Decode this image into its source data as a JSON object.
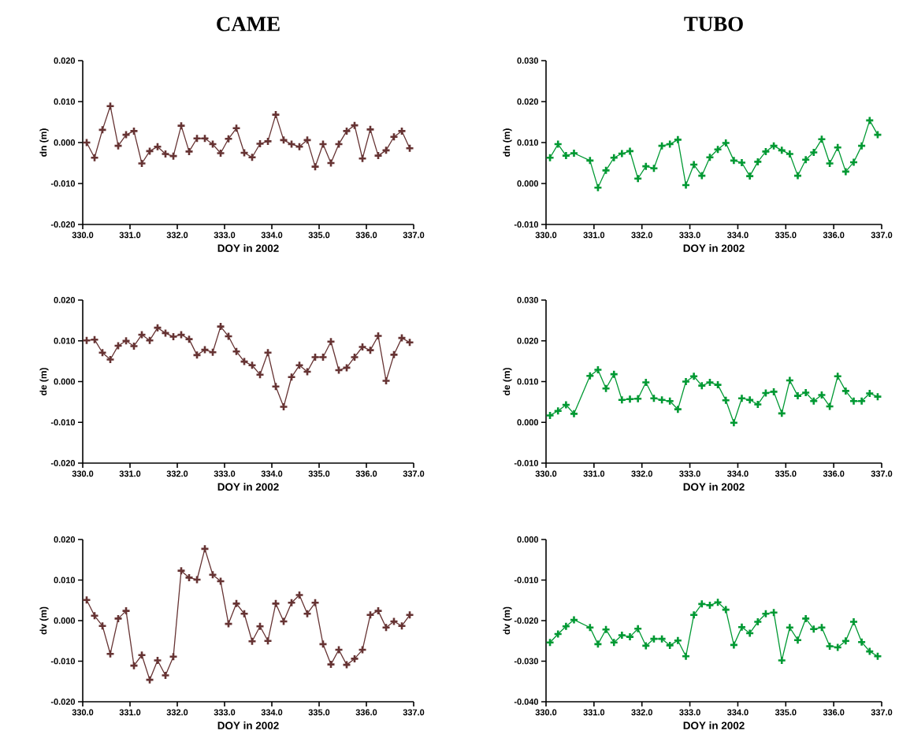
{
  "chart_data": [
    {
      "type": "line",
      "title": "CAME",
      "xlabel": "DOY in 2002",
      "ylabel": "dn (m)",
      "marker": "cross",
      "line_style": "solid",
      "xlim": [
        330,
        337
      ],
      "ylim": [
        -0.02,
        0.02
      ],
      "xticks": [
        {
          "value": 330,
          "label": "330.0"
        },
        {
          "value": 331,
          "label": "331.0"
        },
        {
          "value": 332,
          "label": "332.0"
        },
        {
          "value": 333,
          "label": "333.0"
        },
        {
          "value": 334,
          "label": "334.0"
        },
        {
          "value": 335,
          "label": "335.0"
        },
        {
          "value": 336,
          "label": "336.0"
        },
        {
          "value": 337,
          "label": "337.0"
        }
      ],
      "yticks": [
        {
          "value": -0.02,
          "label": "-0.020"
        },
        {
          "value": -0.01,
          "label": "-0.010"
        },
        {
          "value": 0,
          "label": "0.000"
        },
        {
          "value": 0.01,
          "label": "0.010"
        },
        {
          "value": 0.02,
          "label": "0.020"
        }
      ],
      "series": [
        {
          "color": "#663333",
          "x": [
            330.083,
            330.25,
            330.417,
            330.583,
            330.75,
            330.917,
            331.083,
            331.25,
            331.417,
            331.583,
            331.75,
            331.917,
            332.083,
            332.25,
            332.417,
            332.583,
            332.75,
            332.917,
            333.083,
            333.25,
            333.417,
            333.583,
            333.75,
            333.917,
            334.083,
            334.25,
            334.417,
            334.583,
            334.75,
            334.917,
            335.083,
            335.25,
            335.417,
            335.583,
            335.75,
            335.917,
            336.083,
            336.25,
            336.417,
            336.583,
            336.75,
            336.917
          ],
          "values": [
            0.0,
            -0.0037,
            0.0031,
            0.0089,
            -0.0008,
            0.0019,
            0.0028,
            -0.0051,
            -0.0021,
            -0.001,
            -0.0028,
            -0.0033,
            0.0041,
            -0.0022,
            0.001,
            0.001,
            -0.0004,
            -0.0026,
            0.0009,
            0.0035,
            -0.0025,
            -0.0036,
            -0.0003,
            0.0003,
            0.0068,
            0.0006,
            -0.0004,
            -0.001,
            0.0006,
            -0.0059,
            -0.0004,
            -0.005,
            -0.0004,
            0.0028,
            0.0042,
            -0.0039,
            0.0032,
            -0.0032,
            -0.0019,
            0.0014,
            0.0028,
            -0.0014
          ]
        }
      ]
    },
    {
      "type": "line",
      "title": "TUBO",
      "xlabel": "DOY in 2002",
      "ylabel": "dn (m)",
      "marker": "cross",
      "line_style": "solid",
      "xlim": [
        330,
        337
      ],
      "ylim": [
        -0.01,
        0.03
      ],
      "xticks": [
        {
          "value": 330,
          "label": "330.0"
        },
        {
          "value": 331,
          "label": "331.0"
        },
        {
          "value": 332,
          "label": "332.0"
        },
        {
          "value": 333,
          "label": "333.0"
        },
        {
          "value": 334,
          "label": "334.0"
        },
        {
          "value": 335,
          "label": "335.0"
        },
        {
          "value": 336,
          "label": "336.0"
        },
        {
          "value": 337,
          "label": "337.0"
        }
      ],
      "yticks": [
        {
          "value": -0.01,
          "label": "-0.010"
        },
        {
          "value": 0,
          "label": "0.000"
        },
        {
          "value": 0.01,
          "label": "0.010"
        },
        {
          "value": 0.02,
          "label": "0.020"
        },
        {
          "value": 0.03,
          "label": "0.030"
        }
      ],
      "series": [
        {
          "color": "#009933",
          "x": [
            330.083,
            330.25,
            330.417,
            330.583,
            330.917,
            331.083,
            331.25,
            331.417,
            331.583,
            331.75,
            331.917,
            332.083,
            332.25,
            332.417,
            332.583,
            332.75,
            332.917,
            333.083,
            333.25,
            333.417,
            333.583,
            333.75,
            333.917,
            334.083,
            334.25,
            334.417,
            334.583,
            334.75,
            334.917,
            335.083,
            335.25,
            335.417,
            335.583,
            335.75,
            335.917,
            336.083,
            336.25,
            336.417,
            336.583,
            336.75,
            336.917
          ],
          "values": [
            0.0063,
            0.0096,
            0.0068,
            0.0074,
            0.0056,
            -0.001,
            0.0032,
            0.0063,
            0.0073,
            0.0079,
            0.0012,
            0.0042,
            0.0037,
            0.0092,
            0.0096,
            0.0107,
            -0.0004,
            0.0046,
            0.0019,
            0.0064,
            0.0083,
            0.0099,
            0.0056,
            0.0051,
            0.0018,
            0.0053,
            0.0078,
            0.0092,
            0.0081,
            0.0072,
            0.0019,
            0.0058,
            0.0076,
            0.0108,
            0.0049,
            0.0088,
            0.0029,
            0.0052,
            0.0092,
            0.0154,
            0.0119
          ]
        }
      ]
    },
    {
      "type": "line",
      "xlabel": "DOY in 2002",
      "ylabel": "de (m)",
      "marker": "cross",
      "line_style": "solid",
      "xlim": [
        330,
        337
      ],
      "ylim": [
        -0.02,
        0.02
      ],
      "xticks": [
        {
          "value": 330,
          "label": "330.0"
        },
        {
          "value": 331,
          "label": "331.0"
        },
        {
          "value": 332,
          "label": "332.0"
        },
        {
          "value": 333,
          "label": "333.0"
        },
        {
          "value": 334,
          "label": "334.0"
        },
        {
          "value": 335,
          "label": "335.0"
        },
        {
          "value": 336,
          "label": "336.0"
        },
        {
          "value": 337,
          "label": "337.0"
        }
      ],
      "yticks": [
        {
          "value": -0.02,
          "label": "-0.020"
        },
        {
          "value": -0.01,
          "label": "-0.010"
        },
        {
          "value": 0,
          "label": "0.000"
        },
        {
          "value": 0.01,
          "label": "0.010"
        },
        {
          "value": 0.02,
          "label": "0.020"
        }
      ],
      "series": [
        {
          "color": "#663333",
          "x": [
            330.083,
            330.25,
            330.417,
            330.583,
            330.75,
            330.917,
            331.083,
            331.25,
            331.417,
            331.583,
            331.75,
            331.917,
            332.083,
            332.25,
            332.417,
            332.583,
            332.75,
            332.917,
            333.083,
            333.25,
            333.417,
            333.583,
            333.75,
            333.917,
            334.083,
            334.25,
            334.417,
            334.583,
            334.75,
            334.917,
            335.083,
            335.25,
            335.417,
            335.583,
            335.75,
            335.917,
            336.083,
            336.25,
            336.417,
            336.583,
            336.75,
            336.917
          ],
          "values": [
            0.0101,
            0.0103,
            0.0071,
            0.0054,
            0.0088,
            0.01,
            0.0087,
            0.0115,
            0.0101,
            0.0132,
            0.0119,
            0.011,
            0.0115,
            0.0104,
            0.0065,
            0.0078,
            0.0072,
            0.0135,
            0.0111,
            0.0074,
            0.0049,
            0.004,
            0.0017,
            0.0071,
            -0.0012,
            -0.0062,
            0.0011,
            0.004,
            0.0024,
            0.006,
            0.006,
            0.0098,
            0.0028,
            0.0034,
            0.006,
            0.0085,
            0.0077,
            0.0112,
            0.0002,
            0.0066,
            0.0107,
            0.0096
          ]
        }
      ]
    },
    {
      "type": "line",
      "xlabel": "DOY in 2002",
      "ylabel": "de (m)",
      "marker": "cross",
      "line_style": "solid",
      "xlim": [
        330,
        337
      ],
      "ylim": [
        -0.01,
        0.03
      ],
      "xticks": [
        {
          "value": 330,
          "label": "330.0"
        },
        {
          "value": 331,
          "label": "331.0"
        },
        {
          "value": 332,
          "label": "332.0"
        },
        {
          "value": 333,
          "label": "333.0"
        },
        {
          "value": 334,
          "label": "334.0"
        },
        {
          "value": 335,
          "label": "335.0"
        },
        {
          "value": 336,
          "label": "336.0"
        },
        {
          "value": 337,
          "label": "337.0"
        }
      ],
      "yticks": [
        {
          "value": -0.01,
          "label": "-0.010"
        },
        {
          "value": 0,
          "label": "0.000"
        },
        {
          "value": 0.01,
          "label": "0.010"
        },
        {
          "value": 0.02,
          "label": "0.020"
        },
        {
          "value": 0.03,
          "label": "0.030"
        }
      ],
      "series": [
        {
          "color": "#009933",
          "x": [
            330.083,
            330.25,
            330.417,
            330.583,
            330.917,
            331.083,
            331.25,
            331.417,
            331.583,
            331.75,
            331.917,
            332.083,
            332.25,
            332.417,
            332.583,
            332.75,
            332.917,
            333.083,
            333.25,
            333.417,
            333.583,
            333.75,
            333.917,
            334.083,
            334.25,
            334.417,
            334.583,
            334.75,
            334.917,
            335.083,
            335.25,
            335.417,
            335.583,
            335.75,
            335.917,
            336.083,
            336.25,
            336.417,
            336.583,
            336.75,
            336.917
          ],
          "values": [
            0.0017,
            0.0028,
            0.0043,
            0.0021,
            0.0114,
            0.0129,
            0.0083,
            0.0118,
            0.0055,
            0.0057,
            0.0058,
            0.0098,
            0.0059,
            0.0055,
            0.0052,
            0.0032,
            0.01,
            0.0113,
            0.009,
            0.0098,
            0.0092,
            0.0054,
            -0.0001,
            0.0059,
            0.0055,
            0.0044,
            0.0072,
            0.0075,
            0.0022,
            0.0103,
            0.0065,
            0.0073,
            0.0052,
            0.0067,
            0.0039,
            0.0113,
            0.0077,
            0.0052,
            0.0052,
            0.0071,
            0.0063
          ]
        }
      ]
    },
    {
      "type": "line",
      "xlabel": "DOY in 2002",
      "ylabel": "dv (m)",
      "marker": "cross",
      "line_style": "solid",
      "xlim": [
        330,
        337
      ],
      "ylim": [
        -0.02,
        0.02
      ],
      "xticks": [
        {
          "value": 330,
          "label": "330.0"
        },
        {
          "value": 331,
          "label": "331.0"
        },
        {
          "value": 332,
          "label": "332.0"
        },
        {
          "value": 333,
          "label": "333.0"
        },
        {
          "value": 334,
          "label": "334.0"
        },
        {
          "value": 335,
          "label": "335.0"
        },
        {
          "value": 336,
          "label": "336.0"
        },
        {
          "value": 337,
          "label": "337.0"
        }
      ],
      "yticks": [
        {
          "value": -0.02,
          "label": "-0.020"
        },
        {
          "value": -0.01,
          "label": "-0.010"
        },
        {
          "value": 0,
          "label": "0.000"
        },
        {
          "value": 0.01,
          "label": "0.010"
        },
        {
          "value": 0.02,
          "label": "0.020"
        }
      ],
      "series": [
        {
          "color": "#663333",
          "x": [
            330.083,
            330.25,
            330.417,
            330.583,
            330.75,
            330.917,
            331.083,
            331.25,
            331.417,
            331.583,
            331.75,
            331.917,
            332.083,
            332.25,
            332.417,
            332.583,
            332.75,
            332.917,
            333.083,
            333.25,
            333.417,
            333.583,
            333.75,
            333.917,
            334.083,
            334.25,
            334.417,
            334.583,
            334.75,
            334.917,
            335.083,
            335.25,
            335.417,
            335.583,
            335.75,
            335.917,
            336.083,
            336.25,
            336.417,
            336.583,
            336.75,
            336.917
          ],
          "values": [
            0.0051,
            0.0012,
            -0.0013,
            -0.0082,
            0.0005,
            0.0024,
            -0.0111,
            -0.0085,
            -0.0146,
            -0.0098,
            -0.0135,
            -0.0089,
            0.0123,
            0.0106,
            0.0101,
            0.0177,
            0.0113,
            0.0097,
            -0.0008,
            0.0042,
            0.0017,
            -0.0051,
            -0.0014,
            -0.005,
            0.0042,
            -0.0002,
            0.0044,
            0.0063,
            0.0017,
            0.0044,
            -0.0058,
            -0.0108,
            -0.0072,
            -0.0109,
            -0.0094,
            -0.0072,
            0.0014,
            0.0024,
            -0.0017,
            -0.0002,
            -0.0013,
            0.0014
          ]
        }
      ]
    },
    {
      "type": "line",
      "xlabel": "DOY in 2002",
      "ylabel": "dv (m)",
      "marker": "cross",
      "line_style": "solid",
      "xlim": [
        330,
        337
      ],
      "ylim": [
        -0.04,
        0.0
      ],
      "xticks": [
        {
          "value": 330,
          "label": "330.0"
        },
        {
          "value": 331,
          "label": "331.0"
        },
        {
          "value": 332,
          "label": "332.0"
        },
        {
          "value": 333,
          "label": "333.0"
        },
        {
          "value": 334,
          "label": "334.0"
        },
        {
          "value": 335,
          "label": "335.0"
        },
        {
          "value": 336,
          "label": "336.0"
        },
        {
          "value": 337,
          "label": "337.0"
        }
      ],
      "yticks": [
        {
          "value": -0.04,
          "label": "-0.040"
        },
        {
          "value": -0.03,
          "label": "-0.030"
        },
        {
          "value": -0.02,
          "label": "-0.020"
        },
        {
          "value": -0.01,
          "label": "-0.010"
        },
        {
          "value": 0,
          "label": "0.000"
        }
      ],
      "series": [
        {
          "color": "#009933",
          "x": [
            330.083,
            330.25,
            330.417,
            330.583,
            330.917,
            331.083,
            331.25,
            331.417,
            331.583,
            331.75,
            331.917,
            332.083,
            332.25,
            332.417,
            332.583,
            332.75,
            332.917,
            333.083,
            333.25,
            333.417,
            333.583,
            333.75,
            333.917,
            334.083,
            334.25,
            334.417,
            334.583,
            334.75,
            334.917,
            335.083,
            335.25,
            335.417,
            335.583,
            335.75,
            335.917,
            336.083,
            336.25,
            336.417,
            336.583,
            336.75,
            336.917
          ],
          "values": [
            -0.0254,
            -0.0233,
            -0.0214,
            -0.0198,
            -0.0217,
            -0.0258,
            -0.0222,
            -0.0254,
            -0.0236,
            -0.024,
            -0.022,
            -0.0262,
            -0.0245,
            -0.0245,
            -0.0261,
            -0.0249,
            -0.0288,
            -0.0186,
            -0.0159,
            -0.0162,
            -0.0155,
            -0.0173,
            -0.026,
            -0.0216,
            -0.0231,
            -0.0203,
            -0.0183,
            -0.018,
            -0.0298,
            -0.0217,
            -0.0248,
            -0.0195,
            -0.0221,
            -0.0217,
            -0.0263,
            -0.0266,
            -0.025,
            -0.0203,
            -0.0253,
            -0.0276,
            -0.0288
          ]
        }
      ]
    }
  ]
}
